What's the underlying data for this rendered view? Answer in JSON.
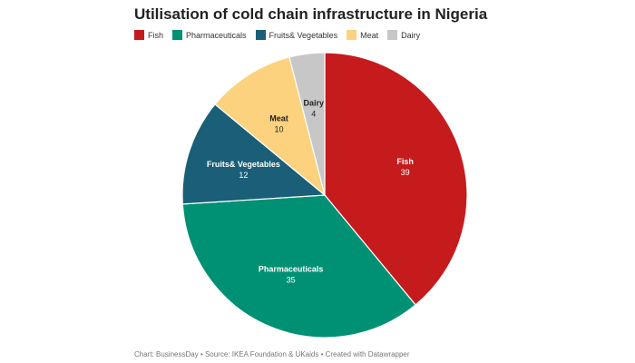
{
  "title": "Utilisation of cold chain infrastructure in Nigeria",
  "footer": "Chart: BusinessDay • Source: IKEA Foundation & UKaids • Created with Datawrapper",
  "colors": {
    "fish": "#c51b1d",
    "pharmaceuticals": "#009074",
    "fruits_vegetables": "#1a5e77",
    "meat": "#fcd27e",
    "dairy": "#c7c7c7"
  },
  "chart_data": {
    "type": "pie",
    "title": "Utilisation of cold chain infrastructure in Nigeria",
    "legend_position": "top-left",
    "slices": [
      {
        "label": "Fish",
        "value": 39,
        "color": "#c51b1d",
        "text_color": "#ffffff"
      },
      {
        "label": "Pharmaceuticals",
        "value": 35,
        "color": "#009074",
        "text_color": "#ffffff"
      },
      {
        "label": "Fruits& Vegetables",
        "value": 12,
        "color": "#1a5e77",
        "text_color": "#ffffff"
      },
      {
        "label": "Meat",
        "value": 10,
        "color": "#fcd27e",
        "text_color": "#222222"
      },
      {
        "label": "Dairy",
        "value": 4,
        "color": "#c7c7c7",
        "text_color": "#222222"
      }
    ]
  }
}
